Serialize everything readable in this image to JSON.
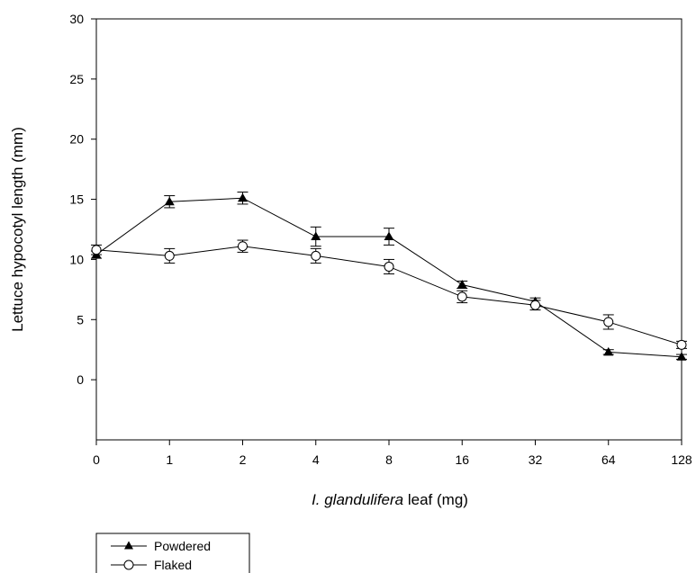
{
  "chart_data": {
    "type": "line",
    "title": "",
    "xlabel": {
      "italic": "I. glandulifera",
      "rest": " leaf (mg)"
    },
    "ylabel": "Lettuce hypocotyl length (mm)",
    "categories": [
      "0",
      "1",
      "2",
      "4",
      "8",
      "16",
      "32",
      "64",
      "128"
    ],
    "ylim": [
      -5,
      30
    ],
    "yticks": [
      0,
      5,
      10,
      15,
      20,
      25,
      30
    ],
    "grid": false,
    "legend_position": "bottom-left, below axes",
    "series": [
      {
        "name": "Powdered",
        "marker": "filled-triangle",
        "values": [
          10.4,
          14.8,
          15.1,
          11.9,
          11.9,
          7.9,
          6.5,
          2.3,
          1.9
        ],
        "errors": [
          0.3,
          0.5,
          0.5,
          0.8,
          0.7,
          0.3,
          0.3,
          0.2,
          0.2
        ]
      },
      {
        "name": "Flaked",
        "marker": "open-circle",
        "values": [
          10.8,
          10.3,
          11.1,
          10.3,
          9.4,
          6.9,
          6.2,
          4.8,
          2.9
        ],
        "errors": [
          0.4,
          0.6,
          0.5,
          0.6,
          0.6,
          0.5,
          0.4,
          0.6,
          0.3
        ]
      }
    ]
  }
}
